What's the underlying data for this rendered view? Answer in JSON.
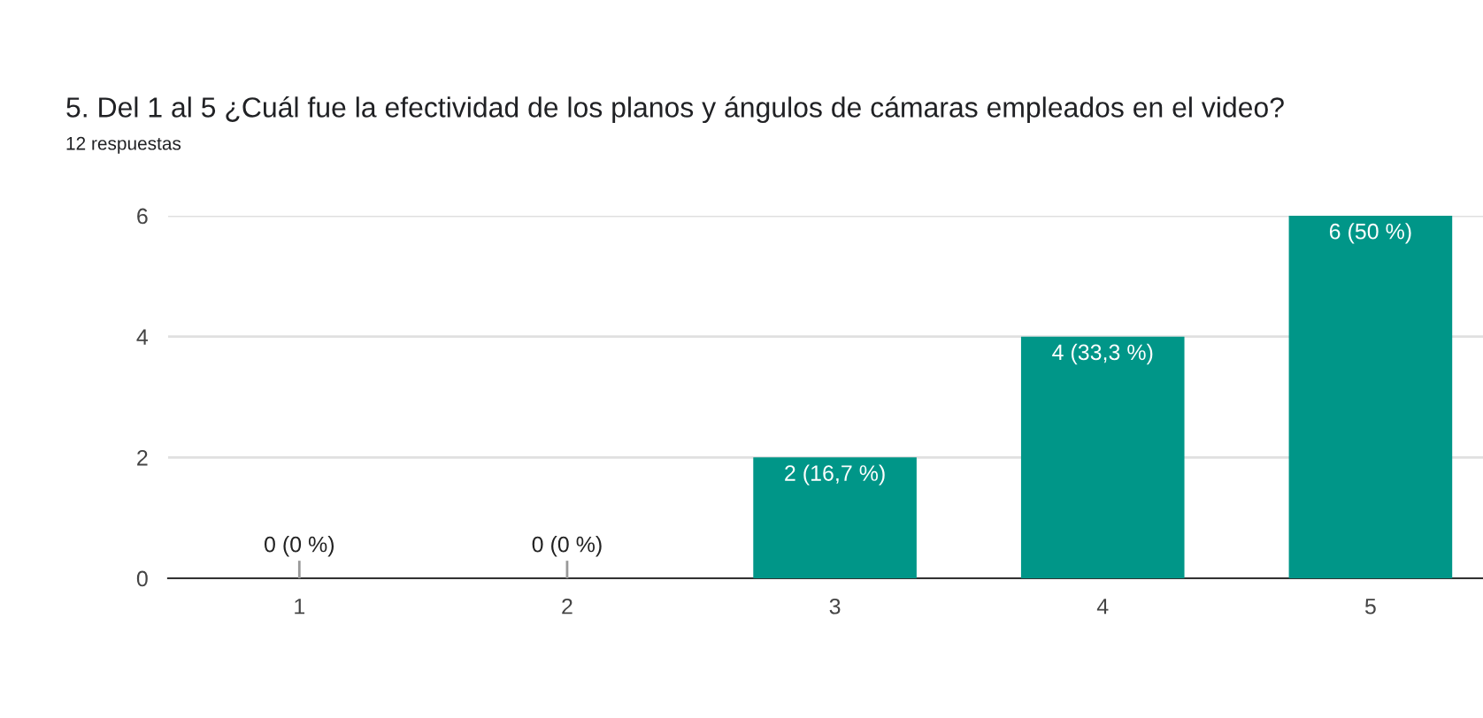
{
  "chart_data": {
    "type": "bar",
    "title": "5. Del 1 al 5 ¿Cuál fue la efectividad de los planos y ángulos de cámaras empleados en el video?",
    "subtitle": "12 respuestas",
    "categories": [
      "1",
      "2",
      "3",
      "4",
      "5"
    ],
    "values": [
      0,
      0,
      2,
      4,
      6
    ],
    "value_labels": [
      "0 (0 %)",
      "0 (0 %)",
      "2 (16,7 %)",
      "4 (33,3 %)",
      "6 (50 %)"
    ],
    "color": "#009688",
    "ylim": [
      0,
      6
    ],
    "yticks": [
      0,
      2,
      4,
      6
    ],
    "grid": "y"
  }
}
